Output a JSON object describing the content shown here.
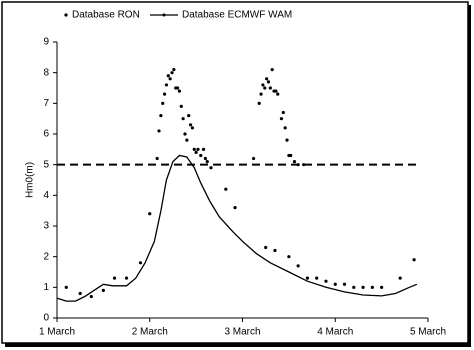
{
  "chart_data": {
    "type": "line",
    "y_label": "Hm0(m)",
    "xlim": [
      1,
      5
    ],
    "xticks": [
      {
        "value": 1,
        "label": "1 March"
      },
      {
        "value": 2,
        "label": "2 March"
      },
      {
        "value": 3,
        "label": "3 March"
      },
      {
        "value": 4,
        "label": "4 March"
      },
      {
        "value": 5,
        "label": "5 March"
      }
    ],
    "ylim": [
      0,
      9
    ],
    "yticks": [
      0,
      1,
      2,
      3,
      4,
      5,
      6,
      7,
      8,
      9
    ],
    "grid": false,
    "legend": "top",
    "reference_lines": [
      5
    ],
    "series": [
      {
        "name": "Database RON",
        "style": "markers",
        "color": "#000000",
        "x": [
          1.1,
          1.25,
          1.37,
          1.5,
          1.62,
          1.75,
          1.9,
          2.0,
          2.08,
          2.1,
          2.12,
          2.14,
          2.16,
          2.18,
          2.2,
          2.22,
          2.24,
          2.26,
          2.28,
          2.3,
          2.32,
          2.34,
          2.36,
          2.38,
          2.4,
          2.42,
          2.44,
          2.46,
          2.48,
          2.5,
          2.52,
          2.55,
          2.58,
          2.6,
          2.62,
          2.66,
          2.82,
          2.92,
          3.12,
          3.18,
          3.2,
          3.22,
          3.24,
          3.26,
          3.28,
          3.3,
          3.32,
          3.34,
          3.36,
          3.38,
          3.42,
          3.44,
          3.46,
          3.48,
          3.5,
          3.52,
          3.56,
          3.6,
          3.66,
          3.25,
          3.35,
          3.5,
          3.6,
          3.7,
          3.8,
          3.9,
          4.0,
          4.1,
          4.2,
          4.3,
          4.4,
          4.5,
          4.7,
          4.85
        ],
        "values": [
          1.0,
          0.8,
          0.7,
          0.9,
          1.3,
          1.3,
          1.8,
          3.4,
          5.2,
          6.1,
          6.6,
          7.0,
          7.3,
          7.6,
          7.9,
          7.8,
          8.0,
          8.1,
          7.5,
          7.5,
          7.4,
          6.9,
          6.5,
          6.0,
          5.8,
          6.6,
          6.3,
          6.2,
          5.5,
          5.4,
          5.5,
          5.3,
          5.5,
          5.2,
          5.1,
          4.9,
          4.2,
          3.6,
          5.2,
          7.0,
          7.3,
          7.6,
          7.5,
          7.8,
          7.7,
          7.5,
          8.1,
          7.4,
          7.4,
          7.3,
          6.5,
          6.7,
          6.2,
          5.8,
          5.3,
          5.3,
          5.1,
          5.0,
          5.0,
          2.3,
          2.2,
          2.0,
          1.7,
          1.3,
          1.3,
          1.2,
          1.1,
          1.1,
          1.0,
          1.0,
          1.0,
          1.0,
          1.3,
          1.9
        ]
      },
      {
        "name": "Database ECMWF WAM",
        "style": "line",
        "color": "#000000",
        "x": [
          1.0,
          1.1,
          1.2,
          1.3,
          1.45,
          1.5,
          1.6,
          1.75,
          1.85,
          1.95,
          2.05,
          2.12,
          2.18,
          2.25,
          2.32,
          2.4,
          2.48,
          2.55,
          2.65,
          2.75,
          2.9,
          3.0,
          3.15,
          3.3,
          3.5,
          3.7,
          3.9,
          4.1,
          4.3,
          4.5,
          4.65,
          4.8,
          4.88
        ],
        "values": [
          0.65,
          0.55,
          0.55,
          0.7,
          1.0,
          1.1,
          1.05,
          1.05,
          1.3,
          1.8,
          2.5,
          3.5,
          4.5,
          5.1,
          5.3,
          5.25,
          4.9,
          4.4,
          3.8,
          3.3,
          2.8,
          2.5,
          2.1,
          1.8,
          1.5,
          1.2,
          1.0,
          0.85,
          0.75,
          0.72,
          0.8,
          1.0,
          1.1
        ]
      }
    ]
  }
}
